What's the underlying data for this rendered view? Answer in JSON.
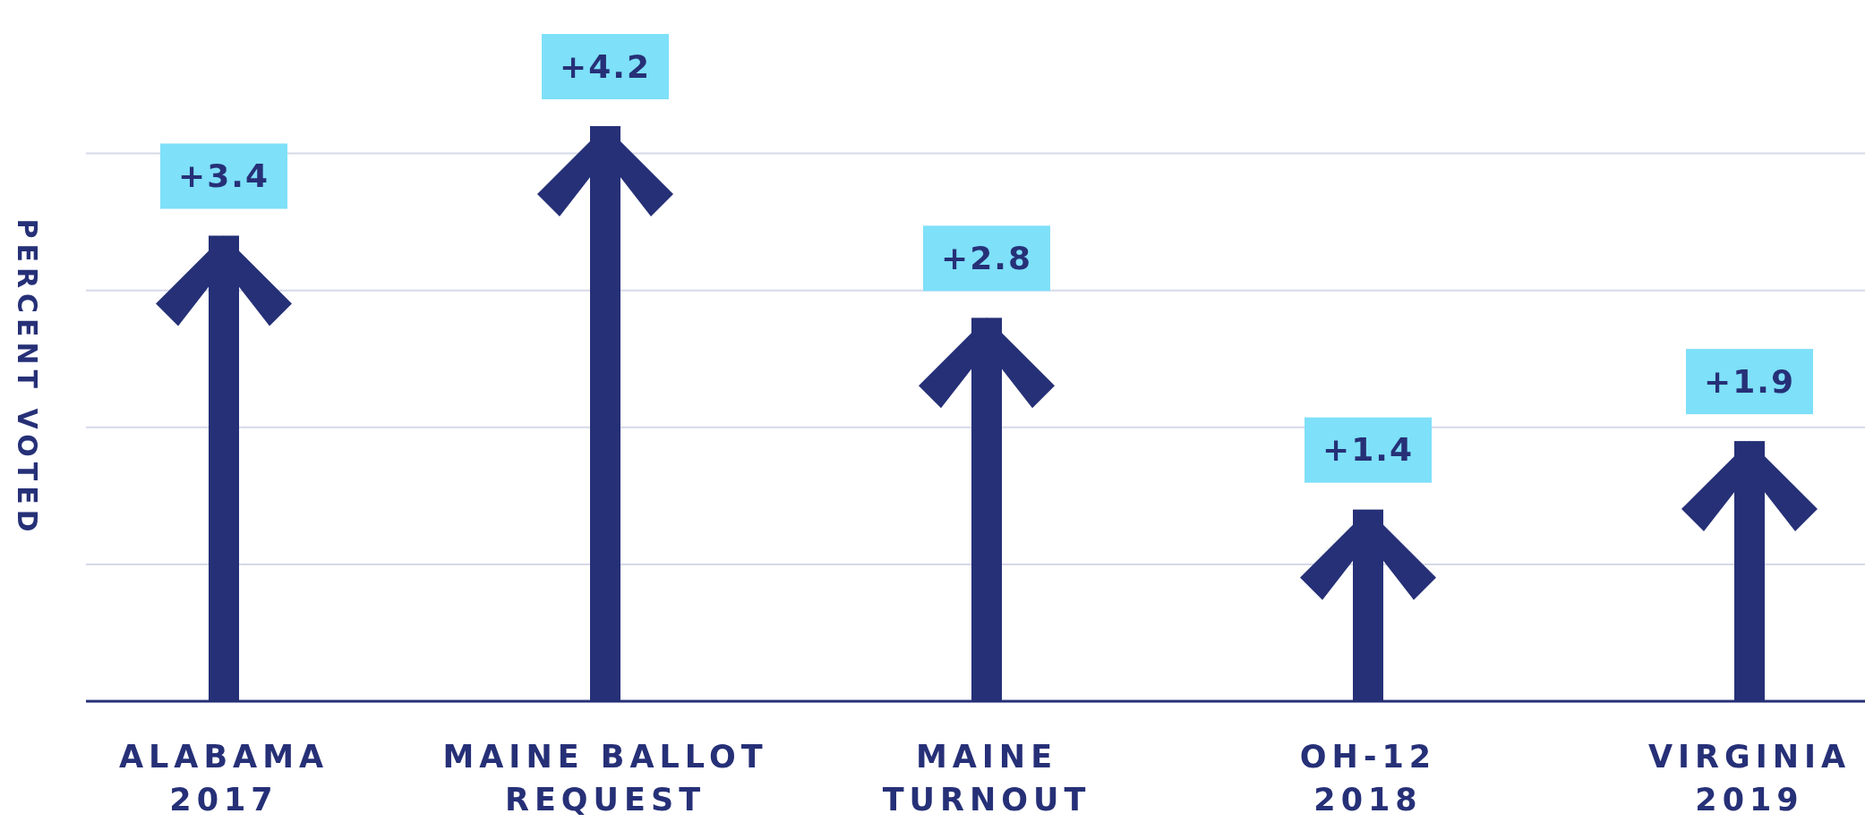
{
  "chart_data": {
    "type": "bar",
    "ylabel": "PERCENT VOTED",
    "categories": [
      "ALABAMA\n2017",
      "MAINE BALLOT\nREQUEST",
      "MAINE\nTURNOUT",
      "OH-12\n2018",
      "VIRGINIA\n2019"
    ],
    "values": [
      3.4,
      4.2,
      2.8,
      1.4,
      1.9
    ],
    "value_labels": [
      "+3.4",
      "+4.2",
      "+2.8",
      "+1.4",
      "+1.9"
    ],
    "color": "#263077",
    "grid": "y",
    "tick_labels": "x"
  }
}
